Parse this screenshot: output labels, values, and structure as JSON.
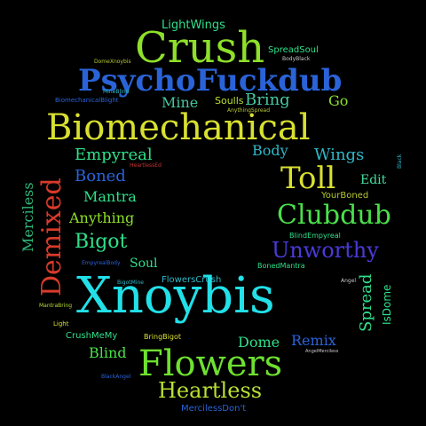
{
  "words": [
    {
      "text": "LightWings",
      "color": "#2fe08a"
    },
    {
      "text": "Crush",
      "color": "#8ee02a"
    },
    {
      "text": "SpreadSoul",
      "color": "#2fe08a"
    },
    {
      "text": "DomeXnoybis",
      "color": "#b8c832"
    },
    {
      "text": "BodyBlack",
      "color": "#c8c8c8"
    },
    {
      "text": "PsychoFuckdub",
      "color": "#2a63d8"
    },
    {
      "text": "MineBlind",
      "color": "#2fb8c8"
    },
    {
      "text": "BiomechanicalBlight",
      "color": "#2a63d8"
    },
    {
      "text": "Mine",
      "color": "#45c8a0"
    },
    {
      "text": "Soulls",
      "color": "#b8e032"
    },
    {
      "text": "Bring",
      "color": "#45c8a0"
    },
    {
      "text": "Go",
      "color": "#8ee02a"
    },
    {
      "text": "AnythingSpread",
      "color": "#b8c832"
    },
    {
      "text": "Biomechanical",
      "color": "#d8e030"
    },
    {
      "text": "Body",
      "color": "#2fb8c8"
    },
    {
      "text": "Wings",
      "color": "#2fb8c8"
    },
    {
      "text": "Black",
      "color": "#2fb8c8"
    },
    {
      "text": "Empyreal",
      "color": "#2fe08a"
    },
    {
      "text": "HeartlessEd",
      "color": "#c83030"
    },
    {
      "text": "Demixed",
      "color": "#d83a2a"
    },
    {
      "text": "Merciless",
      "color": "#2fb87a"
    },
    {
      "text": "Boned",
      "color": "#2a63d8"
    },
    {
      "text": "Toll",
      "color": "#d8e030"
    },
    {
      "text": "Edit",
      "color": "#45e0a0"
    },
    {
      "text": "YourBoned",
      "color": "#b8c832"
    },
    {
      "text": "Mantra",
      "color": "#2fe08a"
    },
    {
      "text": "Anything",
      "color": "#8ee02a"
    },
    {
      "text": "Clubdub",
      "color": "#4ae04a"
    },
    {
      "text": "Bigot",
      "color": "#2fe08a"
    },
    {
      "text": "BlindEmpyreal",
      "color": "#2fe08a"
    },
    {
      "text": "Unworthy",
      "color": "#4a3ad8"
    },
    {
      "text": "EmpyrealBody",
      "color": "#2a63d8"
    },
    {
      "text": "Soul",
      "color": "#2fe08a"
    },
    {
      "text": "BonedMantra",
      "color": "#2fe08a"
    },
    {
      "text": "Spread",
      "color": "#2fe08a"
    },
    {
      "text": "BigotMine",
      "color": "#2fb8c8"
    },
    {
      "text": "FlowersCrush",
      "color": "#2fb8c8"
    },
    {
      "text": "Angel",
      "color": "#c8c8c8"
    },
    {
      "text": "IsDome",
      "color": "#2fe08a"
    },
    {
      "text": "Xnoybis",
      "color": "#22e0e8"
    },
    {
      "text": "MantraBring",
      "color": "#b8e032"
    },
    {
      "text": "Light",
      "color": "#d8e030"
    },
    {
      "text": "CrushMeMy",
      "color": "#2fe08a"
    },
    {
      "text": "BringBigot",
      "color": "#d8e030"
    },
    {
      "text": "Dome",
      "color": "#2fe08a"
    },
    {
      "text": "Remix",
      "color": "#2a63d8"
    },
    {
      "text": "AngelMerciless",
      "color": "#c8c8c8"
    },
    {
      "text": "Blind",
      "color": "#4ae04a"
    },
    {
      "text": "Flowers",
      "color": "#6ee030"
    },
    {
      "text": "BlackAngel",
      "color": "#2a63d8"
    },
    {
      "text": "Heartless",
      "color": "#b8e032"
    },
    {
      "text": "MercilessDon't",
      "color": "#2a63d8"
    }
  ]
}
